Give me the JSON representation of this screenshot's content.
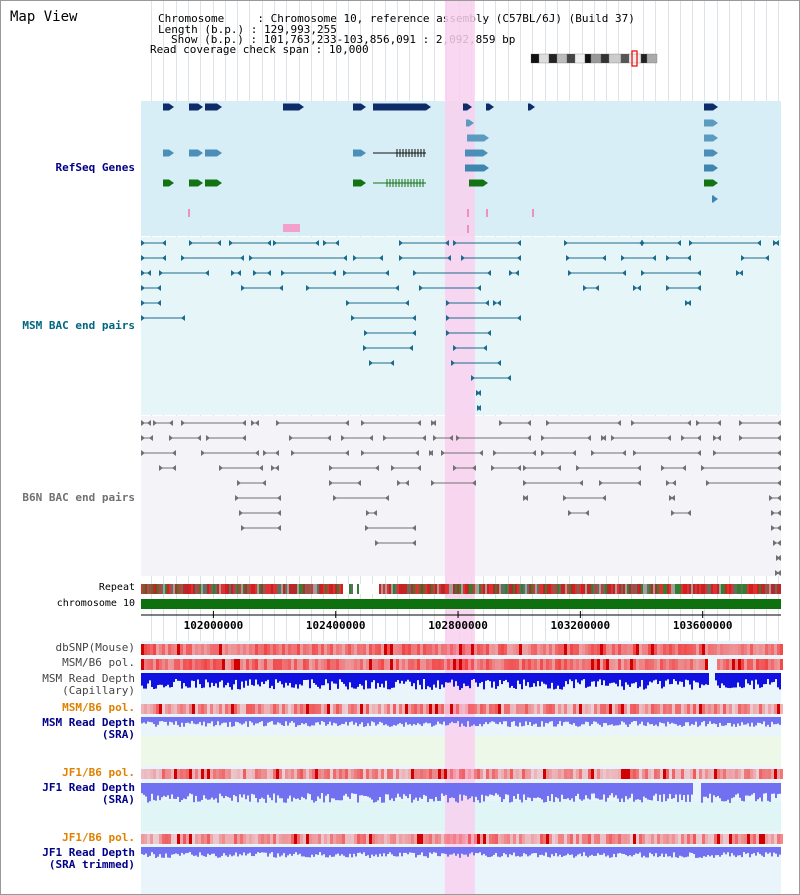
{
  "view_title": "Map View",
  "header": {
    "chromosome_label": "Chromosome",
    "chromosome_value": "Chromosome 10, reference assembly (C57BL/6J) (Build 37)",
    "length_label": "Length (b.p.)",
    "length_value": "129,993,255",
    "show_label": "Show (b.p.)",
    "show_value": "101,763,233-103,856,091 : 2,092,859 bp",
    "coverage_label": "Read coverage check span",
    "coverage_value": "10,000"
  },
  "tracks": {
    "refseq": "RefSeq Genes",
    "msm_bac": "MSM BAC end pairs",
    "b6n_bac": "B6N BAC end pairs",
    "repeat": "Repeat",
    "chromosome": "chromosome 10",
    "dbsnp": "dbSNP(Mouse)",
    "msm_b6_pol": "MSM/B6 pol.",
    "msm_depth_cap_1": "MSM Read Depth",
    "msm_depth_cap_2": "(Capillary)",
    "msm_b6_pol_2": "MSM/B6 pol.",
    "msm_depth_sra_1": "MSM Read Depth",
    "msm_depth_sra_2": "(SRA)",
    "jf1_b6_pol": "JF1/B6 pol.",
    "jf1_depth_sra_1": "JF1 Read Depth",
    "jf1_depth_sra_2": "(SRA)",
    "jf1_b6_pol_2": "JF1/B6 pol.",
    "jf1_depth_trim_1": "JF1 Read Depth",
    "jf1_depth_trim_2": "(SRA trimmed)"
  },
  "axis": {
    "ticks": [
      "102000000",
      "102400000",
      "102800000",
      "103200000",
      "103600000"
    ],
    "tick_values": [
      102000000,
      102400000,
      102800000,
      103200000,
      103600000
    ],
    "range": [
      101763233,
      103856091
    ]
  },
  "highlight": {
    "start": 102757000,
    "end": 102855000
  },
  "colors": {
    "refseq_bg": "#d8eef7",
    "msm_bg": "#e6f6f8",
    "b6n_bg": "#f4f4f8",
    "highlight": "#f8d0ee",
    "gene_dark": "#0e2c6a",
    "gene_mid": "#3e86b0",
    "gene_green": "#137213",
    "msm_bac": "#1c6a8c",
    "b6n_bac": "#707070",
    "chromosome_bar": "#0e700e",
    "depth_cap": "#1010e0",
    "depth_sra": "#7070f0",
    "pol_red": "#f04040",
    "label_blue": "#000088",
    "label_teal": "#006680",
    "label_orange": "#e08000"
  }
}
